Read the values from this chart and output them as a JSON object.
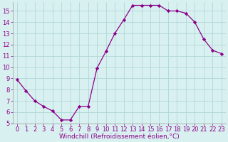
{
  "x": [
    0,
    1,
    2,
    3,
    4,
    5,
    6,
    7,
    8,
    9,
    10,
    11,
    12,
    13,
    14,
    15,
    16,
    17,
    18,
    19,
    20,
    21,
    22,
    23
  ],
  "y": [
    8.9,
    7.9,
    7.0,
    6.5,
    6.1,
    5.3,
    5.3,
    6.5,
    6.5,
    9.9,
    11.4,
    13.0,
    14.2,
    15.5,
    15.5,
    15.5,
    15.5,
    15.0,
    15.0,
    14.8,
    14.0,
    12.5,
    11.5,
    11.2
  ],
  "line_color": "#8B008B",
  "marker": "D",
  "marker_size": 2.2,
  "bg_color": "#d9f0f0",
  "grid_color": "#b0d8d8",
  "xlabel": "Windchill (Refroidissement éolien,°C)",
  "xlabel_color": "#8B008B",
  "tick_color": "#8B008B",
  "xlim": [
    -0.5,
    23.5
  ],
  "ylim": [
    5,
    15.8
  ],
  "yticks": [
    5,
    6,
    7,
    8,
    9,
    10,
    11,
    12,
    13,
    14,
    15
  ],
  "xticks": [
    0,
    1,
    2,
    3,
    4,
    5,
    6,
    7,
    8,
    9,
    10,
    11,
    12,
    13,
    14,
    15,
    16,
    17,
    18,
    19,
    20,
    21,
    22,
    23
  ],
  "xlabel_fontsize": 6.5,
  "tick_fontsize": 6.0,
  "line_width": 0.9
}
